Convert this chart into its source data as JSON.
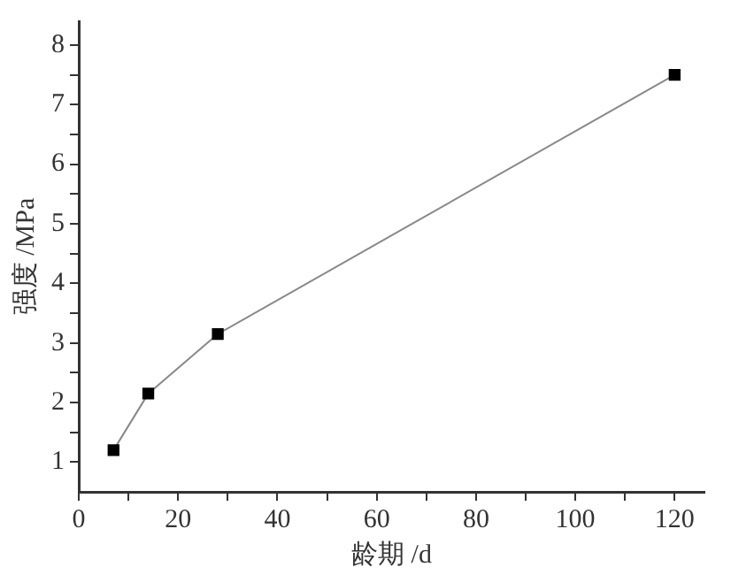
{
  "chart_data": {
    "type": "line",
    "xlabel": "龄期 /d",
    "ylabel": "强度 /MPa",
    "x": [
      7,
      14,
      28,
      120
    ],
    "series": [
      {
        "color": "#000000",
        "values": [
          1.2,
          2.15,
          3.15,
          7.5
        ]
      }
    ],
    "xlim": [
      0,
      126
    ],
    "ylim": [
      0.5,
      8.4
    ],
    "xticks": [
      0,
      {
        "value": 10,
        "label": null
      },
      20,
      {
        "value": 30,
        "label": null
      },
      40,
      {
        "value": 50,
        "label": null
      },
      60,
      {
        "value": 70,
        "label": null
      },
      80,
      {
        "value": 90,
        "label": null
      },
      100,
      {
        "value": 110,
        "label": null
      },
      120
    ],
    "yticks": [
      1,
      {
        "value": 1.5,
        "label": null
      },
      2,
      {
        "value": 2.5,
        "label": null
      },
      3,
      {
        "value": 3.5,
        "label": null
      },
      4,
      {
        "value": 4.5,
        "label": null
      },
      5,
      {
        "value": 5.5,
        "label": null
      },
      6,
      {
        "value": 6.5,
        "label": null
      },
      7,
      {
        "value": 7.5,
        "label": null
      },
      8
    ],
    "grid": false,
    "legend": false,
    "marker": "square",
    "line_style": "solid"
  }
}
